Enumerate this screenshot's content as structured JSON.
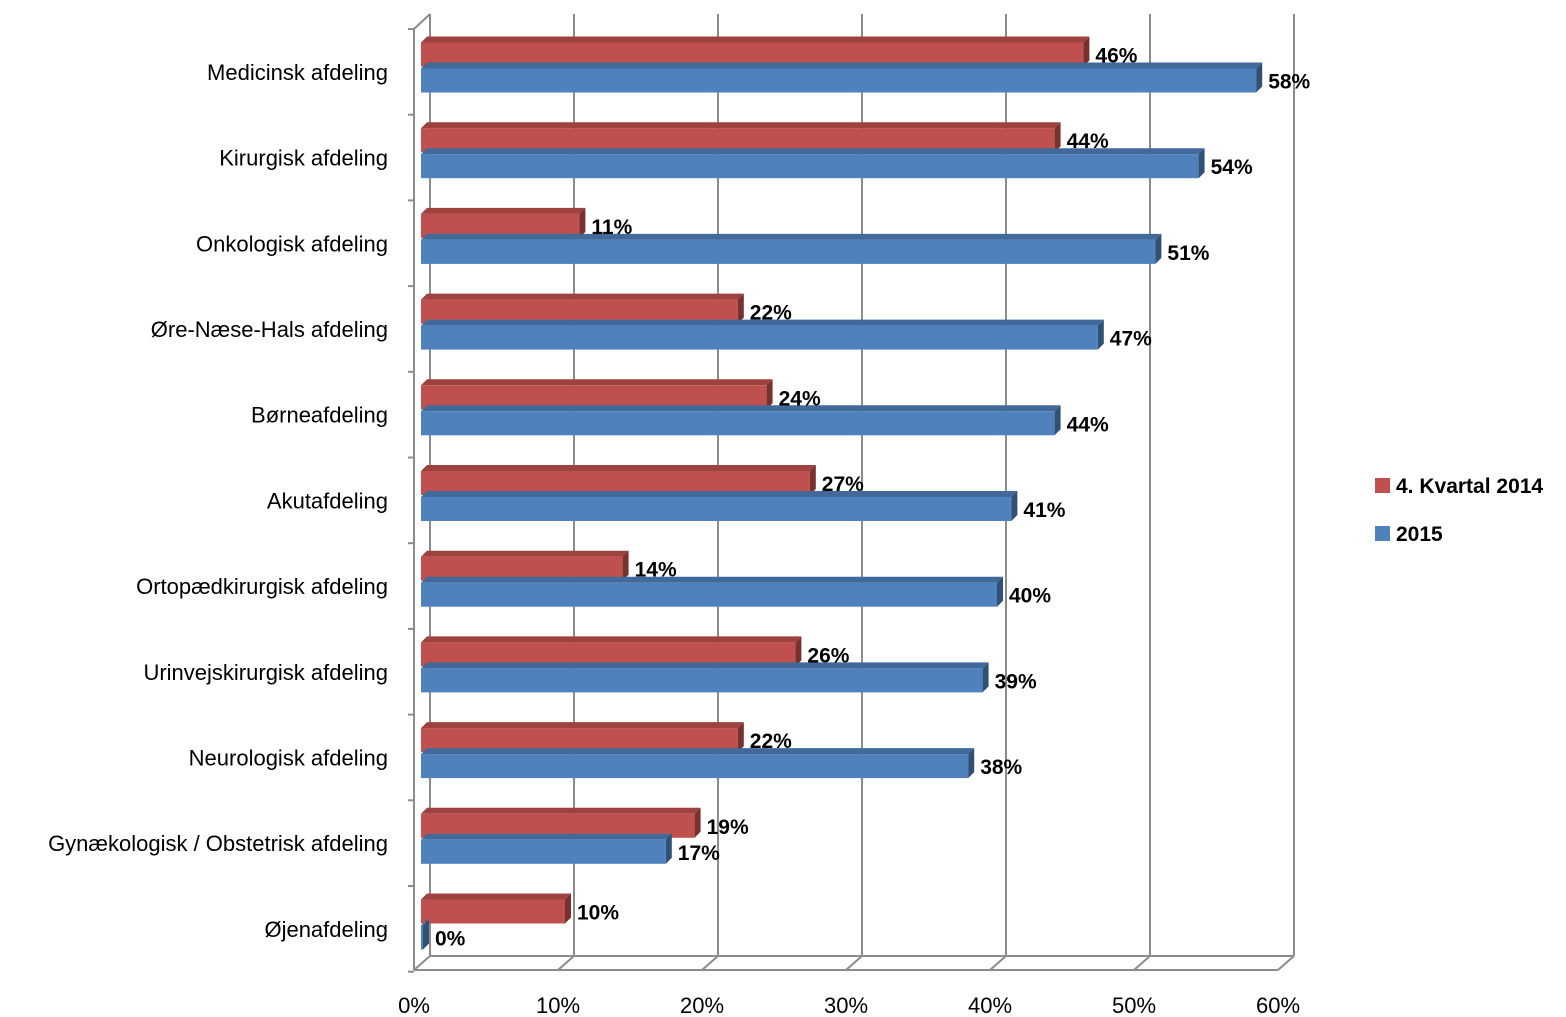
{
  "chart_data": {
    "type": "bar",
    "orientation": "horizontal",
    "style": "3d",
    "title": "",
    "xlabel": "",
    "ylabel": "",
    "xlim": [
      0,
      60
    ],
    "x_ticks": [
      "0%",
      "10%",
      "20%",
      "30%",
      "40%",
      "50%",
      "60%"
    ],
    "grid": true,
    "legend_position": "right",
    "value_suffix": "%",
    "categories": [
      "Medicinsk afdeling",
      "Kirurgisk afdeling",
      "Onkologisk afdeling",
      "Øre-Næse-Hals afdeling",
      "Børneafdeling",
      "Akutafdeling",
      "Ortopædkirurgisk afdeling",
      "Urinvejskirurgisk afdeling",
      "Neurologisk afdeling",
      "Gynækologisk / Obstetrisk afdeling",
      "Øjenafdeling"
    ],
    "series": [
      {
        "name": "4. Kvartal 2014",
        "color": "#C0504D",
        "values": [
          46,
          44,
          11,
          22,
          24,
          27,
          14,
          26,
          22,
          19,
          10
        ],
        "labels": [
          "46%",
          "44%",
          "11%",
          "22%",
          "24%",
          "27%",
          "14%",
          "26%",
          "22%",
          "19%",
          "10%"
        ]
      },
      {
        "name": "2015",
        "color": "#4F81BD",
        "values": [
          58,
          54,
          51,
          47,
          44,
          41,
          40,
          39,
          38,
          17,
          0
        ],
        "labels": [
          "58%",
          "54%",
          "51%",
          "47%",
          "44%",
          "41%",
          "40%",
          "39%",
          "38%",
          "17%",
          "0%"
        ]
      }
    ]
  }
}
